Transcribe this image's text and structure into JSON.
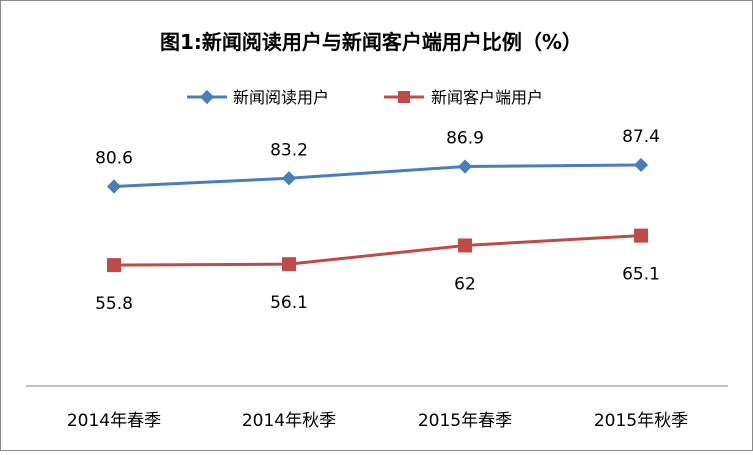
{
  "chart_data": {
    "type": "line",
    "title": "图1:新闻阅读用户与新闻客户端用户比例（%）",
    "categories": [
      "2014年春季",
      "2014年秋季",
      "2015年春季",
      "2015年秋季"
    ],
    "series": [
      {
        "name": "新闻阅读用户",
        "values": [
          80.6,
          83.2,
          86.9,
          87.4
        ],
        "labels": [
          "80.6",
          "83.2",
          "86.9",
          "87.4"
        ],
        "color": "#4a7ebb",
        "marker": "diamond",
        "label_position": "above"
      },
      {
        "name": "新闻客户端用户",
        "values": [
          55.8,
          56.1,
          62,
          65.1
        ],
        "labels": [
          "55.8",
          "56.1",
          "62",
          "65.1"
        ],
        "color": "#be4b48",
        "marker": "square",
        "label_position": "below"
      }
    ],
    "ylim": [
      0,
      100
    ],
    "grid": false,
    "legend_placement": "top"
  }
}
